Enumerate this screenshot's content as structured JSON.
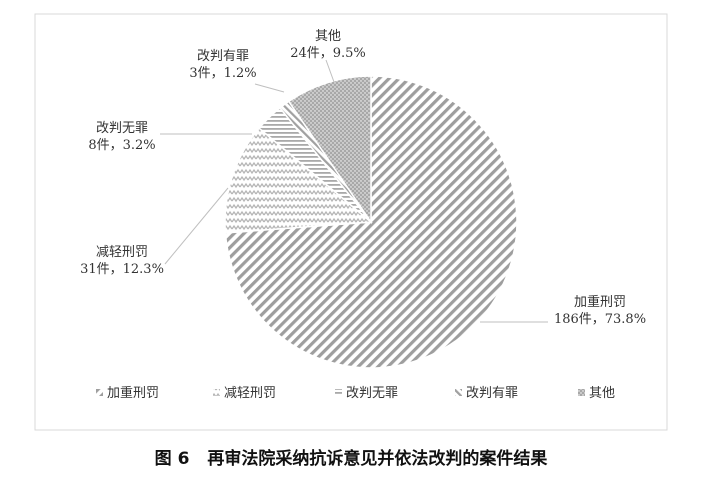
{
  "chart_data": {
    "type": "pie",
    "title": "",
    "slices": [
      {
        "name": "加重刑罚",
        "count": 186,
        "count_label": "186件，73.8%",
        "percent": 73.8,
        "pattern": "diag-right",
        "color": "#9e9e9e"
      },
      {
        "name": "减轻刑罚",
        "count": 31,
        "count_label": "31件，12.3%",
        "percent": 12.3,
        "pattern": "zigzag",
        "color": "#b5b5b5"
      },
      {
        "name": "改判无罪",
        "count": 8,
        "count_label": "8件，3.2%",
        "percent": 3.2,
        "pattern": "hlines",
        "color": "#a9a9a9"
      },
      {
        "name": "改判有罪",
        "count": 3,
        "count_label": "3件，1.2%",
        "percent": 1.2,
        "pattern": "diag-left",
        "color": "#a0a0a0"
      },
      {
        "name": "其他",
        "count": 24,
        "count_label": "24件，9.5%",
        "percent": 9.5,
        "pattern": "dots",
        "color": "#a8a8a8"
      }
    ],
    "legend": {
      "placement": "bottom",
      "entries": [
        "加重刑罚",
        "减轻刑罚",
        "改判无罪",
        "改判有罪",
        "其他"
      ]
    },
    "start": "top",
    "direction": "clockwise"
  },
  "caption": {
    "figure_no": "图 6",
    "text": "再审法院采纳抗诉意见并依法改判的案件结果"
  }
}
